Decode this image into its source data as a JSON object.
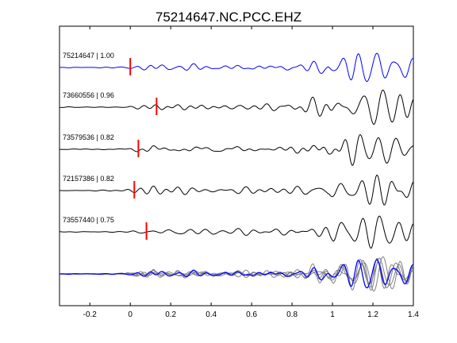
{
  "chart_data": {
    "type": "line",
    "title": "75214647.NC.PCC.EHZ",
    "xlabel": "",
    "ylabel": "",
    "xlim": [
      -0.35,
      1.4
    ],
    "x_ticks": [
      -0.2,
      0,
      0.2,
      0.4,
      0.6,
      0.8,
      1,
      1.2,
      1.4
    ],
    "x_tick_labels": [
      "-0.2",
      "0",
      "0.2",
      "0.4",
      "0.6",
      "0.8",
      "1",
      "1.2",
      "1.4"
    ],
    "grid": false,
    "colors": {
      "template": "#0000ff",
      "trace": "#000000",
      "pick": "#ff0000",
      "stack": "#808080"
    },
    "traces": [
      {
        "label": "75214647 | 1.00",
        "event_id": "75214647",
        "correlation": 1.0,
        "pick_time": 0.0,
        "color": "#0000ff"
      },
      {
        "label": "73660556 | 0.96",
        "event_id": "73660556",
        "correlation": 0.96,
        "pick_time": 0.13,
        "color": "#000000"
      },
      {
        "label": "73579536 | 0.82",
        "event_id": "73579536",
        "correlation": 0.82,
        "pick_time": 0.04,
        "color": "#000000"
      },
      {
        "label": "72157386 | 0.82",
        "event_id": "72157386",
        "correlation": 0.82,
        "pick_time": 0.02,
        "color": "#000000"
      },
      {
        "label": "73557440 | 0.75",
        "event_id": "73557440",
        "correlation": 0.75,
        "pick_time": 0.08,
        "color": "#000000"
      }
    ],
    "stack": {
      "aligned_traces": 5,
      "overlay_color": "#808080",
      "reference_color": "#0000ff"
    }
  }
}
